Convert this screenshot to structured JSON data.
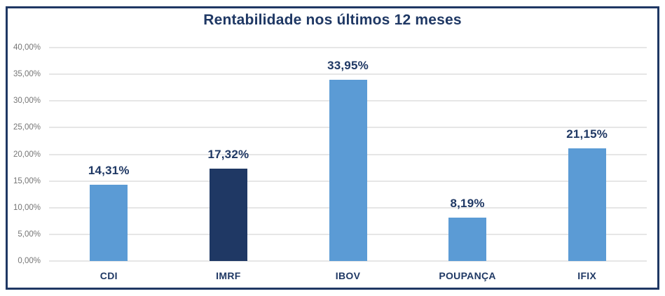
{
  "title": "Rentabilidade nos últimos 12 meses",
  "colors": {
    "accent_light_blue": "#5B9BD5",
    "accent_dark_navy": "#1F3864",
    "title_text": "#1F3864",
    "value_label_text": "#1F3864",
    "category_label_text": "#1F3864",
    "tick_label_text": "#757575",
    "gridline": "#E6E6E6",
    "frame_border": "#1F3864",
    "background": "#FFFFFF"
  },
  "chart_data": {
    "type": "bar",
    "title": "Rentabilidade nos últimos 12 meses",
    "categories": [
      "CDI",
      "IMRF",
      "IBOV",
      "POUPANÇA",
      "IFIX"
    ],
    "values": [
      14.31,
      17.32,
      33.95,
      8.19,
      21.15
    ],
    "value_labels": [
      "14,31%",
      "17,32%",
      "33,95%",
      "8,19%",
      "21,15%"
    ],
    "bar_colors": [
      "#5B9BD5",
      "#1F3864",
      "#5B9BD5",
      "#5B9BD5",
      "#5B9BD5"
    ],
    "xlabel": "",
    "ylabel": "",
    "ylim": [
      0,
      40
    ],
    "ytick_step": 5,
    "ytick_labels": [
      "0,00%",
      "5,00%",
      "10,00%",
      "15,00%",
      "20,00%",
      "25,00%",
      "30,00%",
      "35,00%",
      "40,00%"
    ],
    "grid": true,
    "legend": false,
    "decimal_separator": ","
  }
}
